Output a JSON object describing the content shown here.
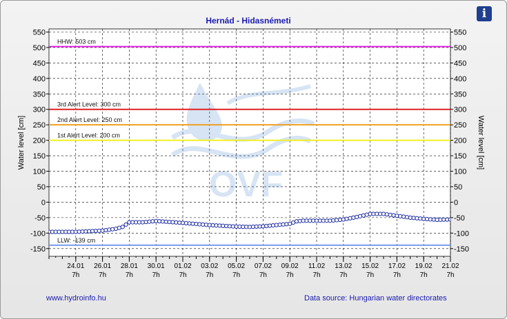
{
  "info_button": {
    "glyph": "i",
    "icon": "info-icon"
  },
  "footer": {
    "left": "www.hydroinfo.hu",
    "right": "Data source: Hungarian water directorates"
  },
  "watermark": {
    "text": "OVF"
  },
  "chart_data": {
    "type": "line",
    "title": "Hernád - Hidasnémeti",
    "ylabel_left": "Water level [cm]",
    "ylabel_right": "Water level [cm]",
    "ylim": [
      -175,
      560
    ],
    "yticks": [
      550,
      500,
      450,
      400,
      350,
      300,
      250,
      200,
      150,
      100,
      50,
      0,
      -50,
      -100,
      -150
    ],
    "xlim_days": [
      0,
      30
    ],
    "xticks": [
      {
        "date": "24.01",
        "time": "7h"
      },
      {
        "date": "26.01",
        "time": "7h"
      },
      {
        "date": "28.01",
        "time": "7h"
      },
      {
        "date": "30.01",
        "time": "7h"
      },
      {
        "date": "01.02",
        "time": "7h"
      },
      {
        "date": "03.02",
        "time": "7h"
      },
      {
        "date": "05.02",
        "time": "7h"
      },
      {
        "date": "07.02",
        "time": "7h"
      },
      {
        "date": "09.02",
        "time": "7h"
      },
      {
        "date": "11.02",
        "time": "7h"
      },
      {
        "date": "13.02",
        "time": "7h"
      },
      {
        "date": "15.02",
        "time": "7h"
      },
      {
        "date": "17.02",
        "time": "7h"
      },
      {
        "date": "19.02",
        "time": "7h"
      },
      {
        "date": "21.02",
        "time": "7h"
      }
    ],
    "reference_lines": [
      {
        "label": "HHW: 503 cm",
        "value": 503,
        "color": "#e020e0"
      },
      {
        "label": "3rd Alert Level: 300 cm",
        "value": 300,
        "color": "#e02020"
      },
      {
        "label": "2nd Alert Level: 250 cm",
        "value": 250,
        "color": "#f0a020"
      },
      {
        "label": "1st Alert Level: 200 cm",
        "value": 200,
        "color": "#f0f020"
      },
      {
        "label": "LLW: -139 cm",
        "value": -139,
        "color": "#7a9af0"
      }
    ],
    "series": [
      {
        "color": "#1a2aa0",
        "x": [
          0,
          2,
          4,
          5,
          5.5,
          6,
          7,
          8,
          9,
          10,
          12,
          14,
          15,
          16,
          17,
          18,
          18.5,
          19,
          20,
          21,
          22,
          22.5,
          23,
          24,
          25,
          26,
          27,
          28,
          29,
          30
        ],
        "y": [
          -96,
          -96,
          -92,
          -86,
          -80,
          -65,
          -65,
          -61,
          -64,
          -67,
          -74,
          -79,
          -80,
          -78,
          -74,
          -70,
          -62,
          -60,
          -60,
          -60,
          -56,
          -52,
          -48,
          -38,
          -38,
          -44,
          -50,
          -54,
          -57,
          -56
        ]
      }
    ],
    "grid": true
  }
}
